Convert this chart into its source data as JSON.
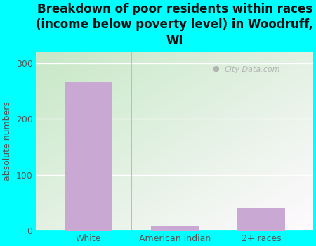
{
  "title": "Breakdown of poor residents within races\n(income below poverty level) in Woodruff,\nWI",
  "categories": [
    "White",
    "American Indian",
    "2+ races"
  ],
  "values": [
    265,
    8,
    40
  ],
  "bar_color": "#c9a8d4",
  "ylabel": "absolute numbers",
  "ylim": [
    0,
    320
  ],
  "yticks": [
    0,
    100,
    200,
    300
  ],
  "background_outer": "#00FFFF",
  "grid_color": "#e0e8e0",
  "title_fontsize": 12,
  "title_color": "#111111",
  "tick_color": "#555555",
  "watermark": "City-Data.com"
}
